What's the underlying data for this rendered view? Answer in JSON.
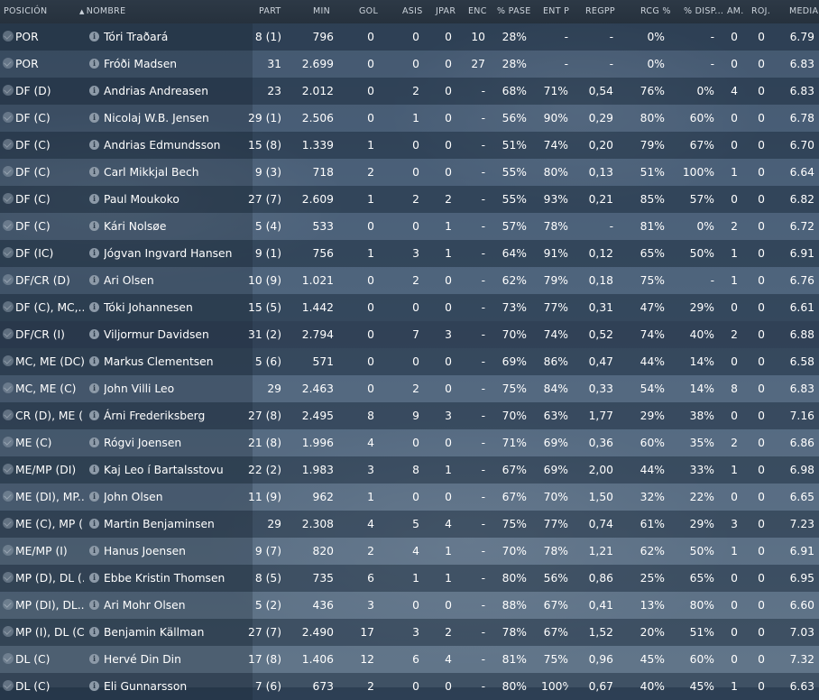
{
  "header": {
    "posicion": "POSICIÓN",
    "nombre": "NOMBRE",
    "part": "PART",
    "min": "MIN",
    "gol": "GOL",
    "asis": "ASIS",
    "jpar": "JPAR",
    "enc": "ENC",
    "pase": "% PASE",
    "entp": "ENT P",
    "regpp": "REGPP",
    "rcg": "RCG %",
    "disp": "% DISP...",
    "am": "AM.",
    "roj": "ROJ.",
    "media": "MEDIA"
  },
  "rows": [
    {
      "pos": "POR",
      "name": "Tóri Traðará",
      "part": "8 (1)",
      "min": "796",
      "gol": "0",
      "asis": "0",
      "jpar": "0",
      "enc": "10",
      "pase": "28%",
      "entp": "-",
      "regpp": "-",
      "rcg": "0%",
      "disp": "-",
      "am": "0",
      "roj": "0",
      "media": "6.79"
    },
    {
      "pos": "POR",
      "name": "Fróði Madsen",
      "part": "31",
      "min": "2.699",
      "gol": "0",
      "asis": "0",
      "jpar": "0",
      "enc": "27",
      "pase": "28%",
      "entp": "-",
      "regpp": "-",
      "rcg": "0%",
      "disp": "-",
      "am": "0",
      "roj": "0",
      "media": "6.83"
    },
    {
      "pos": "DF (D)",
      "name": "Andrias Andreasen",
      "part": "23",
      "min": "2.012",
      "gol": "0",
      "asis": "2",
      "jpar": "0",
      "enc": "-",
      "pase": "68%",
      "entp": "71%",
      "regpp": "0,54",
      "rcg": "76%",
      "disp": "0%",
      "am": "4",
      "roj": "0",
      "media": "6.83"
    },
    {
      "pos": "DF (C)",
      "name": "Nicolaj W.B. Jensen",
      "part": "29 (1)",
      "min": "2.506",
      "gol": "0",
      "asis": "1",
      "jpar": "0",
      "enc": "-",
      "pase": "56%",
      "entp": "90%",
      "regpp": "0,29",
      "rcg": "80%",
      "disp": "60%",
      "am": "0",
      "roj": "0",
      "media": "6.78"
    },
    {
      "pos": "DF (C)",
      "name": "Andrias Edmundsson",
      "part": "15 (8)",
      "min": "1.339",
      "gol": "1",
      "asis": "0",
      "jpar": "0",
      "enc": "-",
      "pase": "51%",
      "entp": "74%",
      "regpp": "0,20",
      "rcg": "79%",
      "disp": "67%",
      "am": "0",
      "roj": "0",
      "media": "6.70"
    },
    {
      "pos": "DF (C)",
      "name": "Carl Mikkjal Bech",
      "part": "9 (3)",
      "min": "718",
      "gol": "2",
      "asis": "0",
      "jpar": "0",
      "enc": "-",
      "pase": "55%",
      "entp": "80%",
      "regpp": "0,13",
      "rcg": "51%",
      "disp": "100%",
      "am": "1",
      "roj": "0",
      "media": "6.64"
    },
    {
      "pos": "DF (C)",
      "name": "Paul Moukoko",
      "part": "27 (7)",
      "min": "2.609",
      "gol": "1",
      "asis": "2",
      "jpar": "2",
      "enc": "-",
      "pase": "55%",
      "entp": "93%",
      "regpp": "0,21",
      "rcg": "85%",
      "disp": "57%",
      "am": "0",
      "roj": "0",
      "media": "6.82"
    },
    {
      "pos": "DF (C)",
      "name": "Kári Nolsøe",
      "part": "5 (4)",
      "min": "533",
      "gol": "0",
      "asis": "0",
      "jpar": "1",
      "enc": "-",
      "pase": "57%",
      "entp": "78%",
      "regpp": "-",
      "rcg": "81%",
      "disp": "0%",
      "am": "2",
      "roj": "0",
      "media": "6.72"
    },
    {
      "pos": "DF (IC)",
      "name": "Jógvan Ingvard Hansen",
      "part": "9 (1)",
      "min": "756",
      "gol": "1",
      "asis": "3",
      "jpar": "1",
      "enc": "-",
      "pase": "64%",
      "entp": "91%",
      "regpp": "0,12",
      "rcg": "65%",
      "disp": "50%",
      "am": "1",
      "roj": "0",
      "media": "6.91"
    },
    {
      "pos": "DF/CR (D)",
      "name": "Ari Olsen",
      "part": "10 (9)",
      "min": "1.021",
      "gol": "0",
      "asis": "2",
      "jpar": "0",
      "enc": "-",
      "pase": "62%",
      "entp": "79%",
      "regpp": "0,18",
      "rcg": "75%",
      "disp": "-",
      "am": "1",
      "roj": "0",
      "media": "6.76"
    },
    {
      "pos": "DF (C), MC,...",
      "name": "Tóki Johannesen",
      "part": "15 (5)",
      "min": "1.442",
      "gol": "0",
      "asis": "0",
      "jpar": "0",
      "enc": "-",
      "pase": "73%",
      "entp": "77%",
      "regpp": "0,31",
      "rcg": "47%",
      "disp": "29%",
      "am": "0",
      "roj": "0",
      "media": "6.61"
    },
    {
      "pos": "DF/CR (I)",
      "name": "Viljormur Davidsen",
      "part": "31 (2)",
      "min": "2.794",
      "gol": "0",
      "asis": "7",
      "jpar": "3",
      "enc": "-",
      "pase": "70%",
      "entp": "74%",
      "regpp": "0,52",
      "rcg": "74%",
      "disp": "40%",
      "am": "2",
      "roj": "0",
      "media": "6.88"
    },
    {
      "pos": "MC, ME (DC)",
      "name": "Markus Clementsen",
      "part": "5 (6)",
      "min": "571",
      "gol": "0",
      "asis": "0",
      "jpar": "0",
      "enc": "-",
      "pase": "69%",
      "entp": "86%",
      "regpp": "0,47",
      "rcg": "44%",
      "disp": "14%",
      "am": "0",
      "roj": "0",
      "media": "6.58"
    },
    {
      "pos": "MC, ME (C)",
      "name": "John Villi Leo",
      "part": "29",
      "min": "2.463",
      "gol": "0",
      "asis": "2",
      "jpar": "0",
      "enc": "-",
      "pase": "75%",
      "entp": "84%",
      "regpp": "0,33",
      "rcg": "54%",
      "disp": "14%",
      "am": "8",
      "roj": "0",
      "media": "6.83"
    },
    {
      "pos": "CR (D), ME (...",
      "name": "Árni Frederiksberg",
      "part": "27 (8)",
      "min": "2.495",
      "gol": "8",
      "asis": "9",
      "jpar": "3",
      "enc": "-",
      "pase": "70%",
      "entp": "63%",
      "regpp": "1,77",
      "rcg": "29%",
      "disp": "38%",
      "am": "0",
      "roj": "0",
      "media": "7.16"
    },
    {
      "pos": "ME (C)",
      "name": "Rógvi Joensen",
      "part": "21 (8)",
      "min": "1.996",
      "gol": "4",
      "asis": "0",
      "jpar": "0",
      "enc": "-",
      "pase": "71%",
      "entp": "69%",
      "regpp": "0,36",
      "rcg": "60%",
      "disp": "35%",
      "am": "2",
      "roj": "0",
      "media": "6.86"
    },
    {
      "pos": "ME/MP (DI)",
      "name": "Kaj Leo í Bartalsstovu",
      "part": "22 (2)",
      "min": "1.983",
      "gol": "3",
      "asis": "8",
      "jpar": "1",
      "enc": "-",
      "pase": "67%",
      "entp": "69%",
      "regpp": "2,00",
      "rcg": "44%",
      "disp": "33%",
      "am": "1",
      "roj": "0",
      "media": "6.98"
    },
    {
      "pos": "ME (DI), MP...",
      "name": "John Olsen",
      "part": "11 (9)",
      "min": "962",
      "gol": "1",
      "asis": "0",
      "jpar": "0",
      "enc": "-",
      "pase": "67%",
      "entp": "70%",
      "regpp": "1,50",
      "rcg": "32%",
      "disp": "22%",
      "am": "0",
      "roj": "0",
      "media": "6.65"
    },
    {
      "pos": "ME (C), MP (...",
      "name": "Martin Benjaminsen",
      "part": "29",
      "min": "2.308",
      "gol": "4",
      "asis": "5",
      "jpar": "4",
      "enc": "-",
      "pase": "75%",
      "entp": "77%",
      "regpp": "0,74",
      "rcg": "61%",
      "disp": "29%",
      "am": "3",
      "roj": "0",
      "media": "7.23"
    },
    {
      "pos": "ME/MP (I)",
      "name": "Hanus Joensen",
      "part": "9 (7)",
      "min": "820",
      "gol": "2",
      "asis": "4",
      "jpar": "1",
      "enc": "-",
      "pase": "70%",
      "entp": "78%",
      "regpp": "1,21",
      "rcg": "62%",
      "disp": "50%",
      "am": "1",
      "roj": "0",
      "media": "6.91"
    },
    {
      "pos": "MP (D), DL (...",
      "name": "Ebbe Kristin Thomsen",
      "part": "8 (5)",
      "min": "735",
      "gol": "6",
      "asis": "1",
      "jpar": "1",
      "enc": "-",
      "pase": "80%",
      "entp": "56%",
      "regpp": "0,86",
      "rcg": "25%",
      "disp": "65%",
      "am": "0",
      "roj": "0",
      "media": "6.95"
    },
    {
      "pos": "MP (DI), DL...",
      "name": "Ari Mohr Olsen",
      "part": "5 (2)",
      "min": "436",
      "gol": "3",
      "asis": "0",
      "jpar": "0",
      "enc": "-",
      "pase": "88%",
      "entp": "67%",
      "regpp": "0,41",
      "rcg": "13%",
      "disp": "80%",
      "am": "0",
      "roj": "0",
      "media": "6.60"
    },
    {
      "pos": "MP (I), DL (C)",
      "name": "Benjamin Källman",
      "part": "27 (7)",
      "min": "2.490",
      "gol": "17",
      "asis": "3",
      "jpar": "2",
      "enc": "-",
      "pase": "78%",
      "entp": "67%",
      "regpp": "1,52",
      "rcg": "20%",
      "disp": "51%",
      "am": "0",
      "roj": "0",
      "media": "7.03"
    },
    {
      "pos": "DL (C)",
      "name": "Hervé Din Din",
      "part": "17 (8)",
      "min": "1.406",
      "gol": "12",
      "asis": "6",
      "jpar": "4",
      "enc": "-",
      "pase": "81%",
      "entp": "75%",
      "regpp": "0,96",
      "rcg": "45%",
      "disp": "60%",
      "am": "0",
      "roj": "0",
      "media": "7.32"
    },
    {
      "pos": "DL (C)",
      "name": "Eli Gunnarsson",
      "part": "7 (6)",
      "min": "673",
      "gol": "2",
      "asis": "0",
      "jpar": "0",
      "enc": "-",
      "pase": "80%",
      "entp": "100%",
      "regpp": "0,67",
      "rcg": "40%",
      "disp": "45%",
      "am": "1",
      "roj": "0",
      "media": "6.63"
    }
  ]
}
